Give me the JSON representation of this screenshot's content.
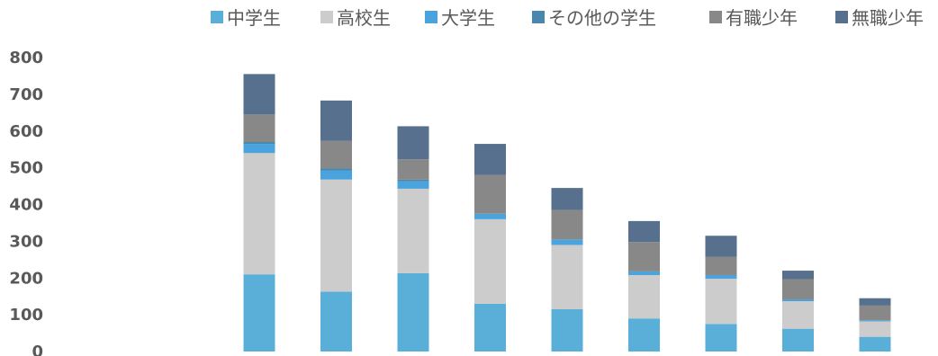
{
  "chart_data": {
    "type": "bar",
    "stacked": true,
    "categories": [
      "",
      "",
      "",
      "",
      "",
      "",
      "",
      "",
      ""
    ],
    "series": [
      {
        "name": "中学生",
        "color": "#5aafd9",
        "values": [
          210,
          163,
          213,
          130,
          115,
          90,
          75,
          62,
          40
        ]
      },
      {
        "name": "高校生",
        "color": "#cccccc",
        "values": [
          330,
          305,
          230,
          230,
          175,
          118,
          123,
          75,
          42
        ]
      },
      {
        "name": "大学生",
        "color": "#4aa3dd",
        "values": [
          25,
          25,
          20,
          15,
          15,
          10,
          10,
          5,
          3
        ]
      },
      {
        "name": "その他の学生",
        "color": "#4a87ac",
        "values": [
          5,
          5,
          5,
          0,
          0,
          0,
          0,
          0,
          0
        ]
      },
      {
        "name": "有職少年",
        "color": "#888888",
        "values": [
          75,
          75,
          55,
          105,
          80,
          80,
          50,
          55,
          40
        ]
      },
      {
        "name": "無職少年",
        "color": "#56708e",
        "values": [
          110,
          110,
          90,
          85,
          60,
          57,
          57,
          23,
          20
        ]
      }
    ],
    "ylim": [
      0,
      800
    ],
    "yticks": [
      "800",
      "700",
      "600",
      "500",
      "400",
      "300",
      "200",
      "100",
      "0"
    ],
    "legend": "top",
    "grid": false,
    "title": "",
    "xlabel": "",
    "ylabel": ""
  }
}
